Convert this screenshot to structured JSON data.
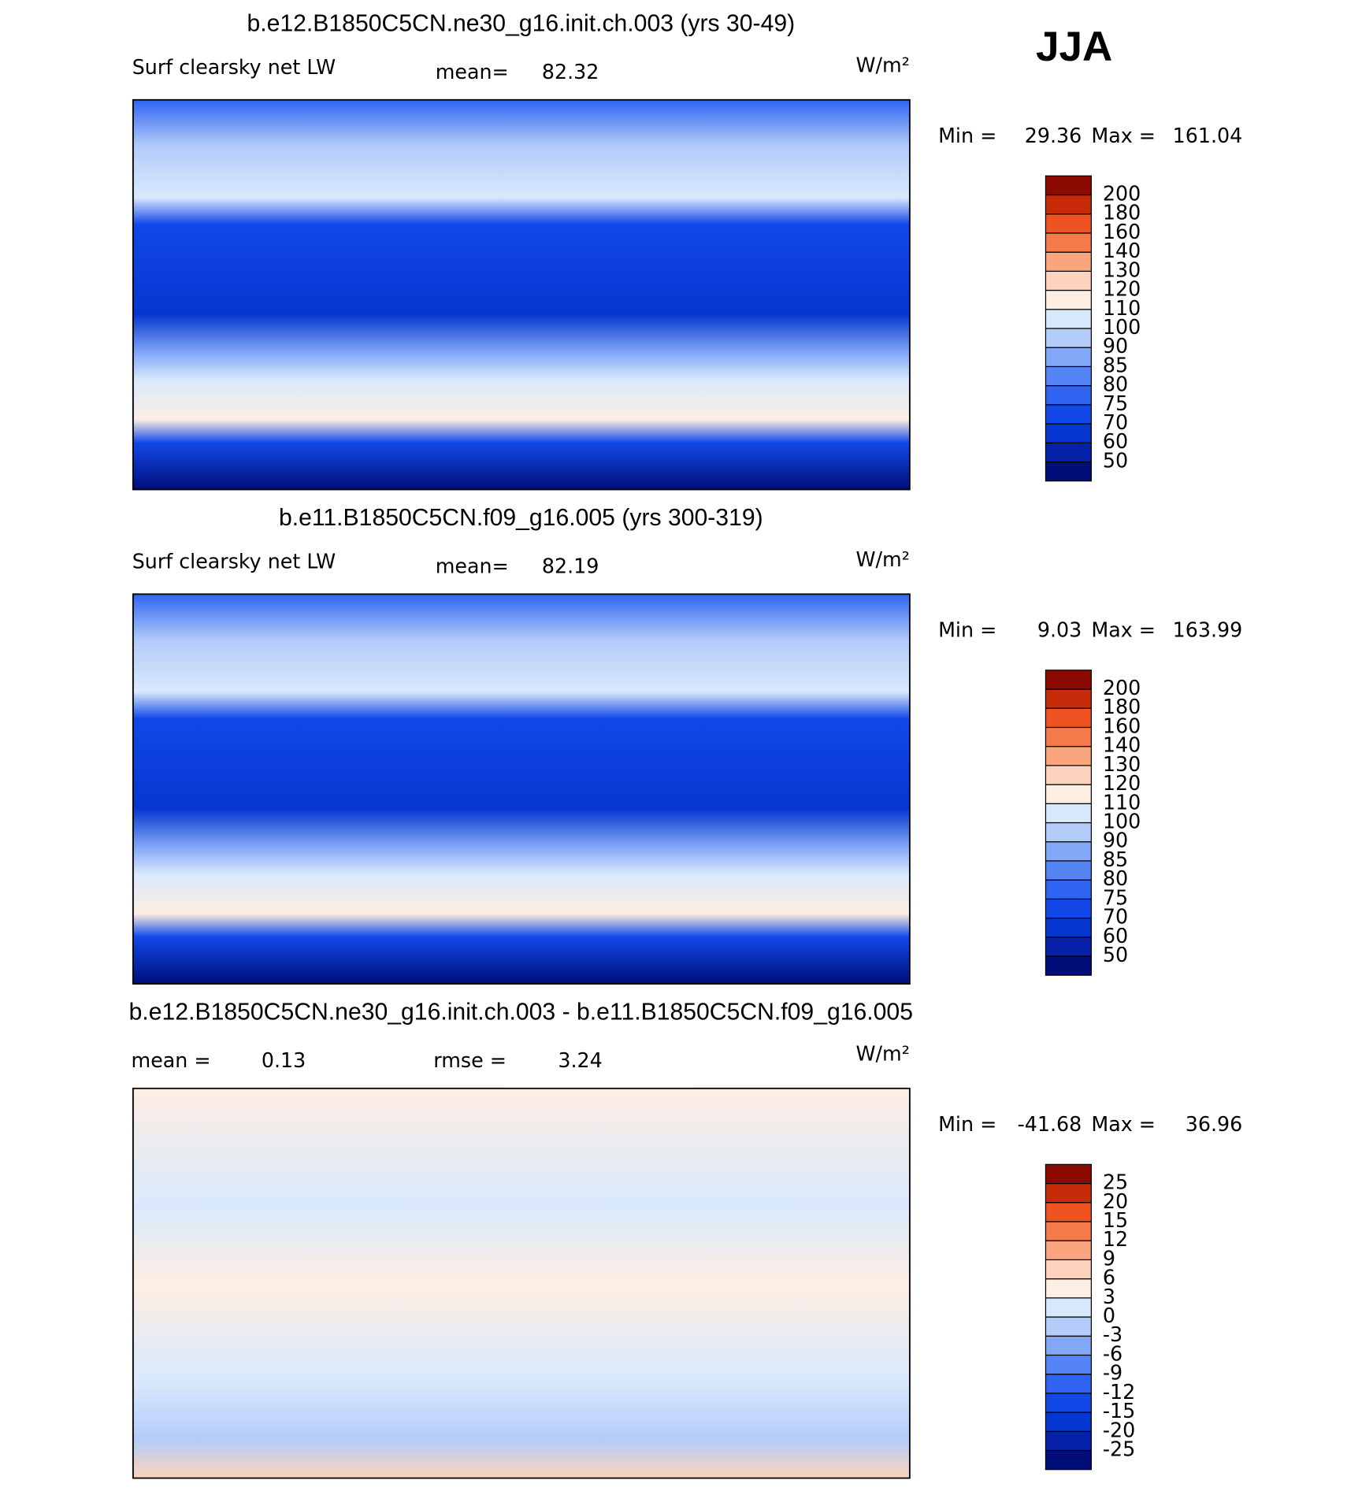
{
  "header": {
    "season": "JJA"
  },
  "colors": [
    "#000E7A",
    "#0621A8",
    "#0636D0",
    "#1248E8",
    "#2F64F2",
    "#5584F5",
    "#84A8F8",
    "#B3CCF9",
    "#D9E9FC",
    "#FDEEE3",
    "#FDD3BD",
    "#F9A67E",
    "#F57B4B",
    "#EF5223",
    "#C62C0A",
    "#8C0A00"
  ],
  "panels": [
    {
      "title": "b.e12.B1850C5CN.ne30_g16.init.ch.003 (yrs 30-49)",
      "variable": "Surf clearsky net LW",
      "mean_label": "mean=",
      "mean": 82.32,
      "units": "W/m²",
      "min_label": "Min =",
      "min": 29.36,
      "max_label": "Max =",
      "max": 161.04,
      "levels": [
        50,
        60,
        70,
        75,
        80,
        85,
        90,
        100,
        110,
        120,
        130,
        140,
        160,
        180,
        200
      ]
    },
    {
      "title": "b.e11.B1850C5CN.f09_g16.005 (yrs 300-319)",
      "variable": "Surf clearsky net LW",
      "mean_label": "mean=",
      "mean": 82.19,
      "units": "W/m²",
      "min_label": "Min =",
      "min": 9.03,
      "max_label": "Max =",
      "max": 163.99,
      "levels": [
        50,
        60,
        70,
        75,
        80,
        85,
        90,
        100,
        110,
        120,
        130,
        140,
        160,
        180,
        200
      ]
    },
    {
      "title": "b.e12.B1850C5CN.ne30_g16.init.ch.003 - b.e11.B1850C5CN.f09_g16.005",
      "mean_label": "mean =",
      "mean": 0.13,
      "rmse_label": "rmse =",
      "rmse": 3.24,
      "units": "W/m²",
      "min_label": "Min =",
      "min": -41.68,
      "max_label": "Max =",
      "max": 36.96,
      "levels": [
        -25,
        -20,
        -15,
        -12,
        -9,
        -6,
        -3,
        0,
        3,
        6,
        9,
        12,
        15,
        20,
        25
      ]
    }
  ]
}
